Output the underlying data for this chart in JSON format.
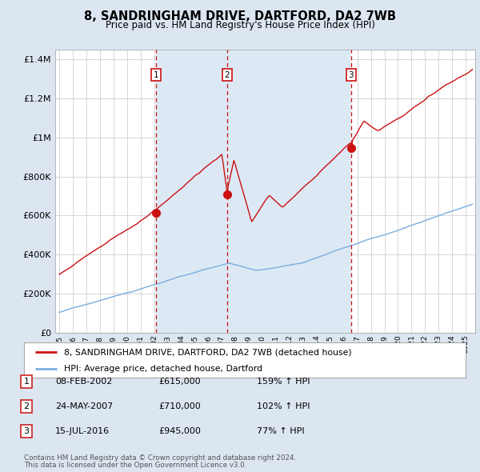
{
  "title": "8, SANDRINGHAM DRIVE, DARTFORD, DA2 7WB",
  "subtitle": "Price paid vs. HM Land Registry's House Price Index (HPI)",
  "legend_line1": "8, SANDRINGHAM DRIVE, DARTFORD, DA2 7WB (detached house)",
  "legend_line2": "HPI: Average price, detached house, Dartford",
  "footer1": "Contains HM Land Registry data © Crown copyright and database right 2024.",
  "footer2": "This data is licensed under the Open Government Licence v3.0.",
  "sales": [
    {
      "num": 1,
      "date_x": 2002.12,
      "price": 615000,
      "label": "08-FEB-2002",
      "price_str": "£615,000",
      "hpi_str": "159% ↑ HPI"
    },
    {
      "num": 2,
      "date_x": 2007.38,
      "price": 710000,
      "label": "24-MAY-2007",
      "price_str": "£710,000",
      "hpi_str": "102% ↑ HPI"
    },
    {
      "num": 3,
      "date_x": 2016.54,
      "price": 945000,
      "label": "15-JUL-2016",
      "price_str": "£945,000",
      "hpi_str": "77% ↑ HPI"
    }
  ],
  "hpi_color": "#7aadde",
  "price_color": "#cc1111",
  "dashed_color": "#cc1111",
  "shade_color": "#dce9f5",
  "ylim": [
    0,
    1450000
  ],
  "yticks": [
    0,
    200000,
    400000,
    600000,
    800000,
    1000000,
    1200000,
    1400000
  ],
  "xlim_start": 1994.7,
  "xlim_end": 2025.7,
  "background_color": "#dce6f1",
  "plot_bg": "#ffffff",
  "grid_color": "#c8c8c8"
}
